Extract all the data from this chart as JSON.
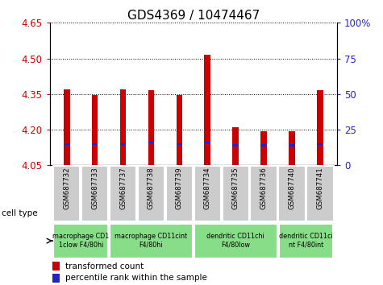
{
  "title": "GDS4369 / 10474467",
  "samples": [
    "GSM687732",
    "GSM687733",
    "GSM687737",
    "GSM687738",
    "GSM687739",
    "GSM687734",
    "GSM687735",
    "GSM687736",
    "GSM687740",
    "GSM687741"
  ],
  "transformed_counts": [
    4.37,
    4.345,
    4.37,
    4.365,
    4.345,
    4.515,
    4.212,
    4.195,
    4.195,
    4.365
  ],
  "blue_pct": [
    15,
    15,
    15,
    16,
    15,
    16,
    14,
    14,
    14,
    15
  ],
  "y_min": 4.05,
  "y_max": 4.65,
  "y_ticks": [
    4.05,
    4.2,
    4.35,
    4.5,
    4.65
  ],
  "y2_ticks": [
    0,
    25,
    50,
    75,
    100
  ],
  "y2_ticklabels": [
    "0",
    "25",
    "50",
    "75",
    "100%"
  ],
  "bar_color": "#cc0000",
  "blue_color": "#2222cc",
  "cell_types": [
    {
      "label": "macrophage CD1\n1clow F4/80hi",
      "start": 0,
      "end": 2
    },
    {
      "label": "macrophage CD11cint\nF4/80hi",
      "start": 2,
      "end": 5
    },
    {
      "label": "dendritic CD11chi\nF4/80low",
      "start": 5,
      "end": 8
    },
    {
      "label": "dendritic CD11ci\nnt F4/80int",
      "start": 8,
      "end": 10
    }
  ],
  "cell_type_bg": "#88dd88",
  "sample_box_bg": "#cccccc",
  "left_tick_color": "#cc0000",
  "right_tick_color": "#2222cc",
  "title_fontsize": 11,
  "tick_fontsize": 8.5,
  "bar_width": 0.22,
  "blue_bar_height": 0.008,
  "legend_red_label": "transformed count",
  "legend_blue_label": "percentile rank within the sample"
}
